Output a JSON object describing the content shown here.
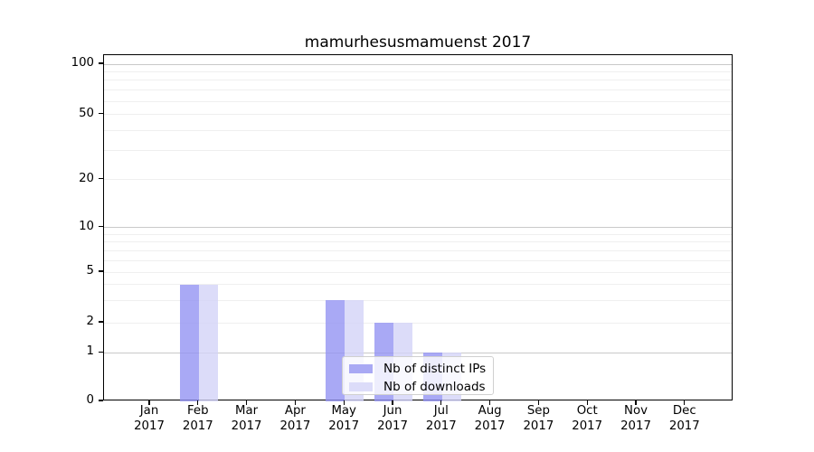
{
  "chart_data": {
    "type": "bar",
    "title": "mamurhesusmamuenst 2017",
    "categories": [
      "Jan 2017",
      "Feb 2017",
      "Mar 2017",
      "Apr 2017",
      "May 2017",
      "Jun 2017",
      "Jul 2017",
      "Aug 2017",
      "Sep 2017",
      "Oct 2017",
      "Nov 2017",
      "Dec 2017"
    ],
    "series": [
      {
        "name": "Nb of distinct IPs",
        "color": "#a9a9f4",
        "fill": "rgba(148,148,243,0.8)",
        "values": [
          0,
          4,
          0,
          0,
          3,
          2,
          1,
          0,
          0,
          0,
          0,
          0
        ]
      },
      {
        "name": "Nb of downloads",
        "color": "#dcdcf9",
        "fill": "rgba(211,211,248,0.8)",
        "values": [
          0,
          4,
          0,
          0,
          3,
          2,
          1,
          0,
          0,
          0,
          0,
          0
        ]
      }
    ],
    "xlabel": "",
    "ylabel": "",
    "yscale": "symlog",
    "ylim": [
      0,
      113
    ],
    "y_ticks": [
      0,
      1,
      2,
      5,
      10,
      20,
      50,
      100
    ],
    "y_minor_gridlines": [
      2,
      3,
      4,
      5,
      6,
      7,
      8,
      9,
      20,
      30,
      40,
      50,
      60,
      70,
      80,
      90
    ],
    "y_decade_gridlines": [
      1,
      10,
      100
    ],
    "grid": "on",
    "legend_position": "lower right inside plot"
  },
  "colors": {
    "grid_decade": "#c9c9c9",
    "grid_minor": "#efefef",
    "axis": "#000000",
    "legend_border": "#d0d0d0",
    "legend_bg": "rgba(255,255,255,0.8)",
    "text": "#000000"
  }
}
